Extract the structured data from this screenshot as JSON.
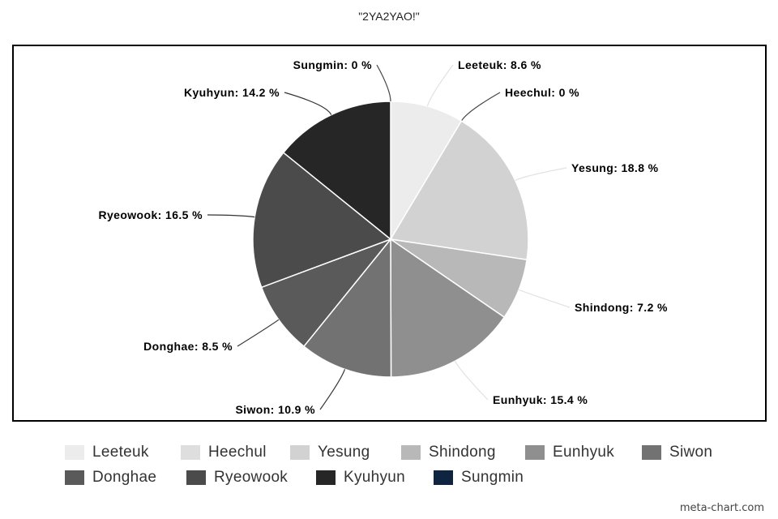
{
  "chart_data": {
    "type": "pie",
    "title": "\"2YA2YAO!\"",
    "slices": [
      {
        "name": "Leeteuk",
        "value": 8.6,
        "label": "Leeteuk: 8.6 %",
        "color": "#ececec"
      },
      {
        "name": "Heechul",
        "value": 0,
        "label": "Heechul: 0 %",
        "color": "#dedede"
      },
      {
        "name": "Yesung",
        "value": 18.8,
        "label": "Yesung: 18.8 %",
        "color": "#d2d2d2"
      },
      {
        "name": "Shindong",
        "value": 7.2,
        "label": "Shindong: 7.2 %",
        "color": "#b8b8b8"
      },
      {
        "name": "Eunhyuk",
        "value": 15.4,
        "label": "Eunhyuk: 15.4 %",
        "color": "#8f8f8f"
      },
      {
        "name": "Siwon",
        "value": 10.9,
        "label": "Siwon: 10.9 %",
        "color": "#727272"
      },
      {
        "name": "Donghae",
        "value": 8.5,
        "label": "Donghae: 8.5 %",
        "color": "#5a5a5a"
      },
      {
        "name": "Ryeowook",
        "value": 16.5,
        "label": "Ryeowook: 16.5 %",
        "color": "#4b4b4b"
      },
      {
        "name": "Kyuhyun",
        "value": 14.2,
        "label": "Kyuhyun: 14.2 %",
        "color": "#262626"
      },
      {
        "name": "Sungmin",
        "value": 0,
        "label": "Sungmin: 0 %",
        "color": "#0f2440"
      }
    ],
    "legend_position": "bottom"
  },
  "watermark": "meta-chart.com"
}
